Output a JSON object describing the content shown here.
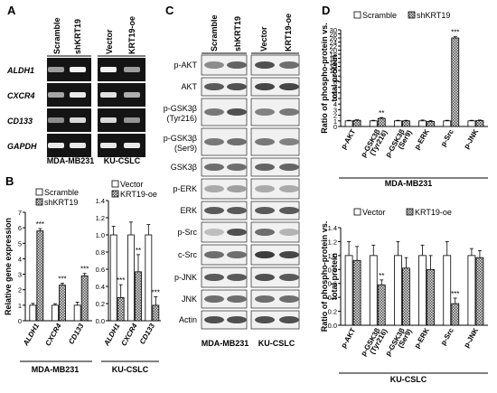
{
  "panel_labels": {
    "A": "A",
    "B": "B",
    "C": "C",
    "D": "D"
  },
  "panel_a": {
    "lanes": [
      "Scramble",
      "shKRT19",
      "Vector",
      "KRT19-oe"
    ],
    "genes": [
      "ALDH1",
      "CXCR4",
      "CD133",
      "GAPDH"
    ],
    "cell_lines": [
      "MDA-MB231",
      "KU-CSLC"
    ]
  },
  "panel_c": {
    "lanes": [
      "Scramble",
      "shKRT19",
      "Vector",
      "KRT19-oe"
    ],
    "proteins": [
      "p-AKT",
      "AKT",
      "p-GSK3β (Tyr216)",
      "p-GSK3β (Ser9)",
      "GSK3β",
      "p-ERK",
      "ERK",
      "p-Src",
      "c-Src",
      "p-JNK",
      "JNK",
      "Actin"
    ],
    "cell_lines": [
      "MDA-MB231",
      "KU-CSLC"
    ]
  },
  "colors": {
    "bar_control": "#ffffff",
    "bar_treated": "#8c8c8c",
    "blot_bg": "#f1f1f1",
    "gel_bg": "#141414"
  },
  "chart_data": [
    {
      "type": "bar",
      "panel": "B-left",
      "ylabel": "Relative gene expression",
      "categories": [
        "ALDH1",
        "CXCR4",
        "CD133"
      ],
      "ylim": [
        0,
        7
      ],
      "yticks": [
        0,
        1,
        2,
        3,
        4,
        5,
        6,
        7
      ],
      "series": [
        {
          "name": "Scramble",
          "values": [
            1.0,
            1.0,
            1.0
          ],
          "err": [
            0.12,
            0.1,
            0.2
          ]
        },
        {
          "name": "shKRT19",
          "values": [
            5.8,
            2.3,
            2.9
          ],
          "err": [
            0.15,
            0.12,
            0.15
          ]
        }
      ],
      "annotations": [
        "***",
        "***",
        "***"
      ],
      "cell_line": "MDA-MB231"
    },
    {
      "type": "bar",
      "panel": "B-right",
      "categories": [
        "ALDH1",
        "CXCR4",
        "CD133"
      ],
      "ylim": [
        0,
        1.4
      ],
      "yticks": [
        0,
        0.2,
        0.4,
        0.6,
        0.8,
        1.0,
        1.2,
        1.4
      ],
      "series": [
        {
          "name": "Vector",
          "values": [
            1.0,
            1.0,
            1.0
          ],
          "err": [
            0.1,
            0.15,
            0.12
          ]
        },
        {
          "name": "KRT19-oe",
          "values": [
            0.27,
            0.57,
            0.18
          ],
          "err": [
            0.15,
            0.2,
            0.1
          ]
        }
      ],
      "annotations": [
        "***",
        "**",
        "***"
      ],
      "cell_line": "KU-CSLC"
    },
    {
      "type": "bar",
      "panel": "D-top",
      "ylabel": "Ratio of phospho-protein vs. total protein",
      "categories": [
        "p-AKT",
        "p-GSK3β (Tyr216)",
        "p-GSK3β (Ser9)",
        "p-ERK",
        "p-Src",
        "p-JNK"
      ],
      "ylim": [
        0,
        30
      ],
      "yticks": [
        0,
        1,
        2,
        3,
        4,
        5,
        6,
        7,
        8,
        9,
        10,
        12,
        14,
        16,
        18,
        20,
        22,
        24,
        26,
        28,
        30
      ],
      "scale": "broken axis (0–10 by 1, 10–30 by 2)",
      "series": [
        {
          "name": "Scramble",
          "values": [
            1.0,
            1.0,
            1.0,
            1.0,
            1.0,
            1.0
          ],
          "err": [
            0.1,
            0.1,
            0.1,
            0.15,
            0.1,
            0.1
          ]
        },
        {
          "name": "shKRT19",
          "values": [
            1.1,
            1.45,
            1.0,
            0.9,
            26.0,
            1.05
          ],
          "err": [
            0.1,
            0.15,
            0.1,
            0.15,
            0.6,
            0.1
          ]
        }
      ],
      "annotations": [
        "",
        "**",
        "",
        "",
        "***",
        ""
      ],
      "cell_line": "MDA-MB231"
    },
    {
      "type": "bar",
      "panel": "D-bottom",
      "ylabel": "Ratio of phospho-protein vs. total protein",
      "categories": [
        "p-AKT",
        "p-GSK3β (Tyr216)",
        "p-GSK3β (Ser9)",
        "p-ERK",
        "p-Src",
        "p-JNK"
      ],
      "ylim": [
        0,
        1.4
      ],
      "yticks": [
        0,
        0.2,
        0.4,
        0.6,
        0.8,
        1.0,
        1.2,
        1.4
      ],
      "series": [
        {
          "name": "Vector",
          "values": [
            1.0,
            1.0,
            1.0,
            1.0,
            1.0,
            1.0
          ],
          "err": [
            0.2,
            0.15,
            0.2,
            0.15,
            0.2,
            0.1
          ]
        },
        {
          "name": "KRT19-oe",
          "values": [
            0.93,
            0.58,
            0.82,
            0.8,
            0.31,
            0.97
          ],
          "err": [
            0.2,
            0.07,
            0.15,
            0.2,
            0.08,
            0.1
          ]
        }
      ],
      "annotations": [
        "",
        "**",
        "",
        "",
        "***",
        ""
      ],
      "cell_line": "KU-CSLC"
    }
  ]
}
